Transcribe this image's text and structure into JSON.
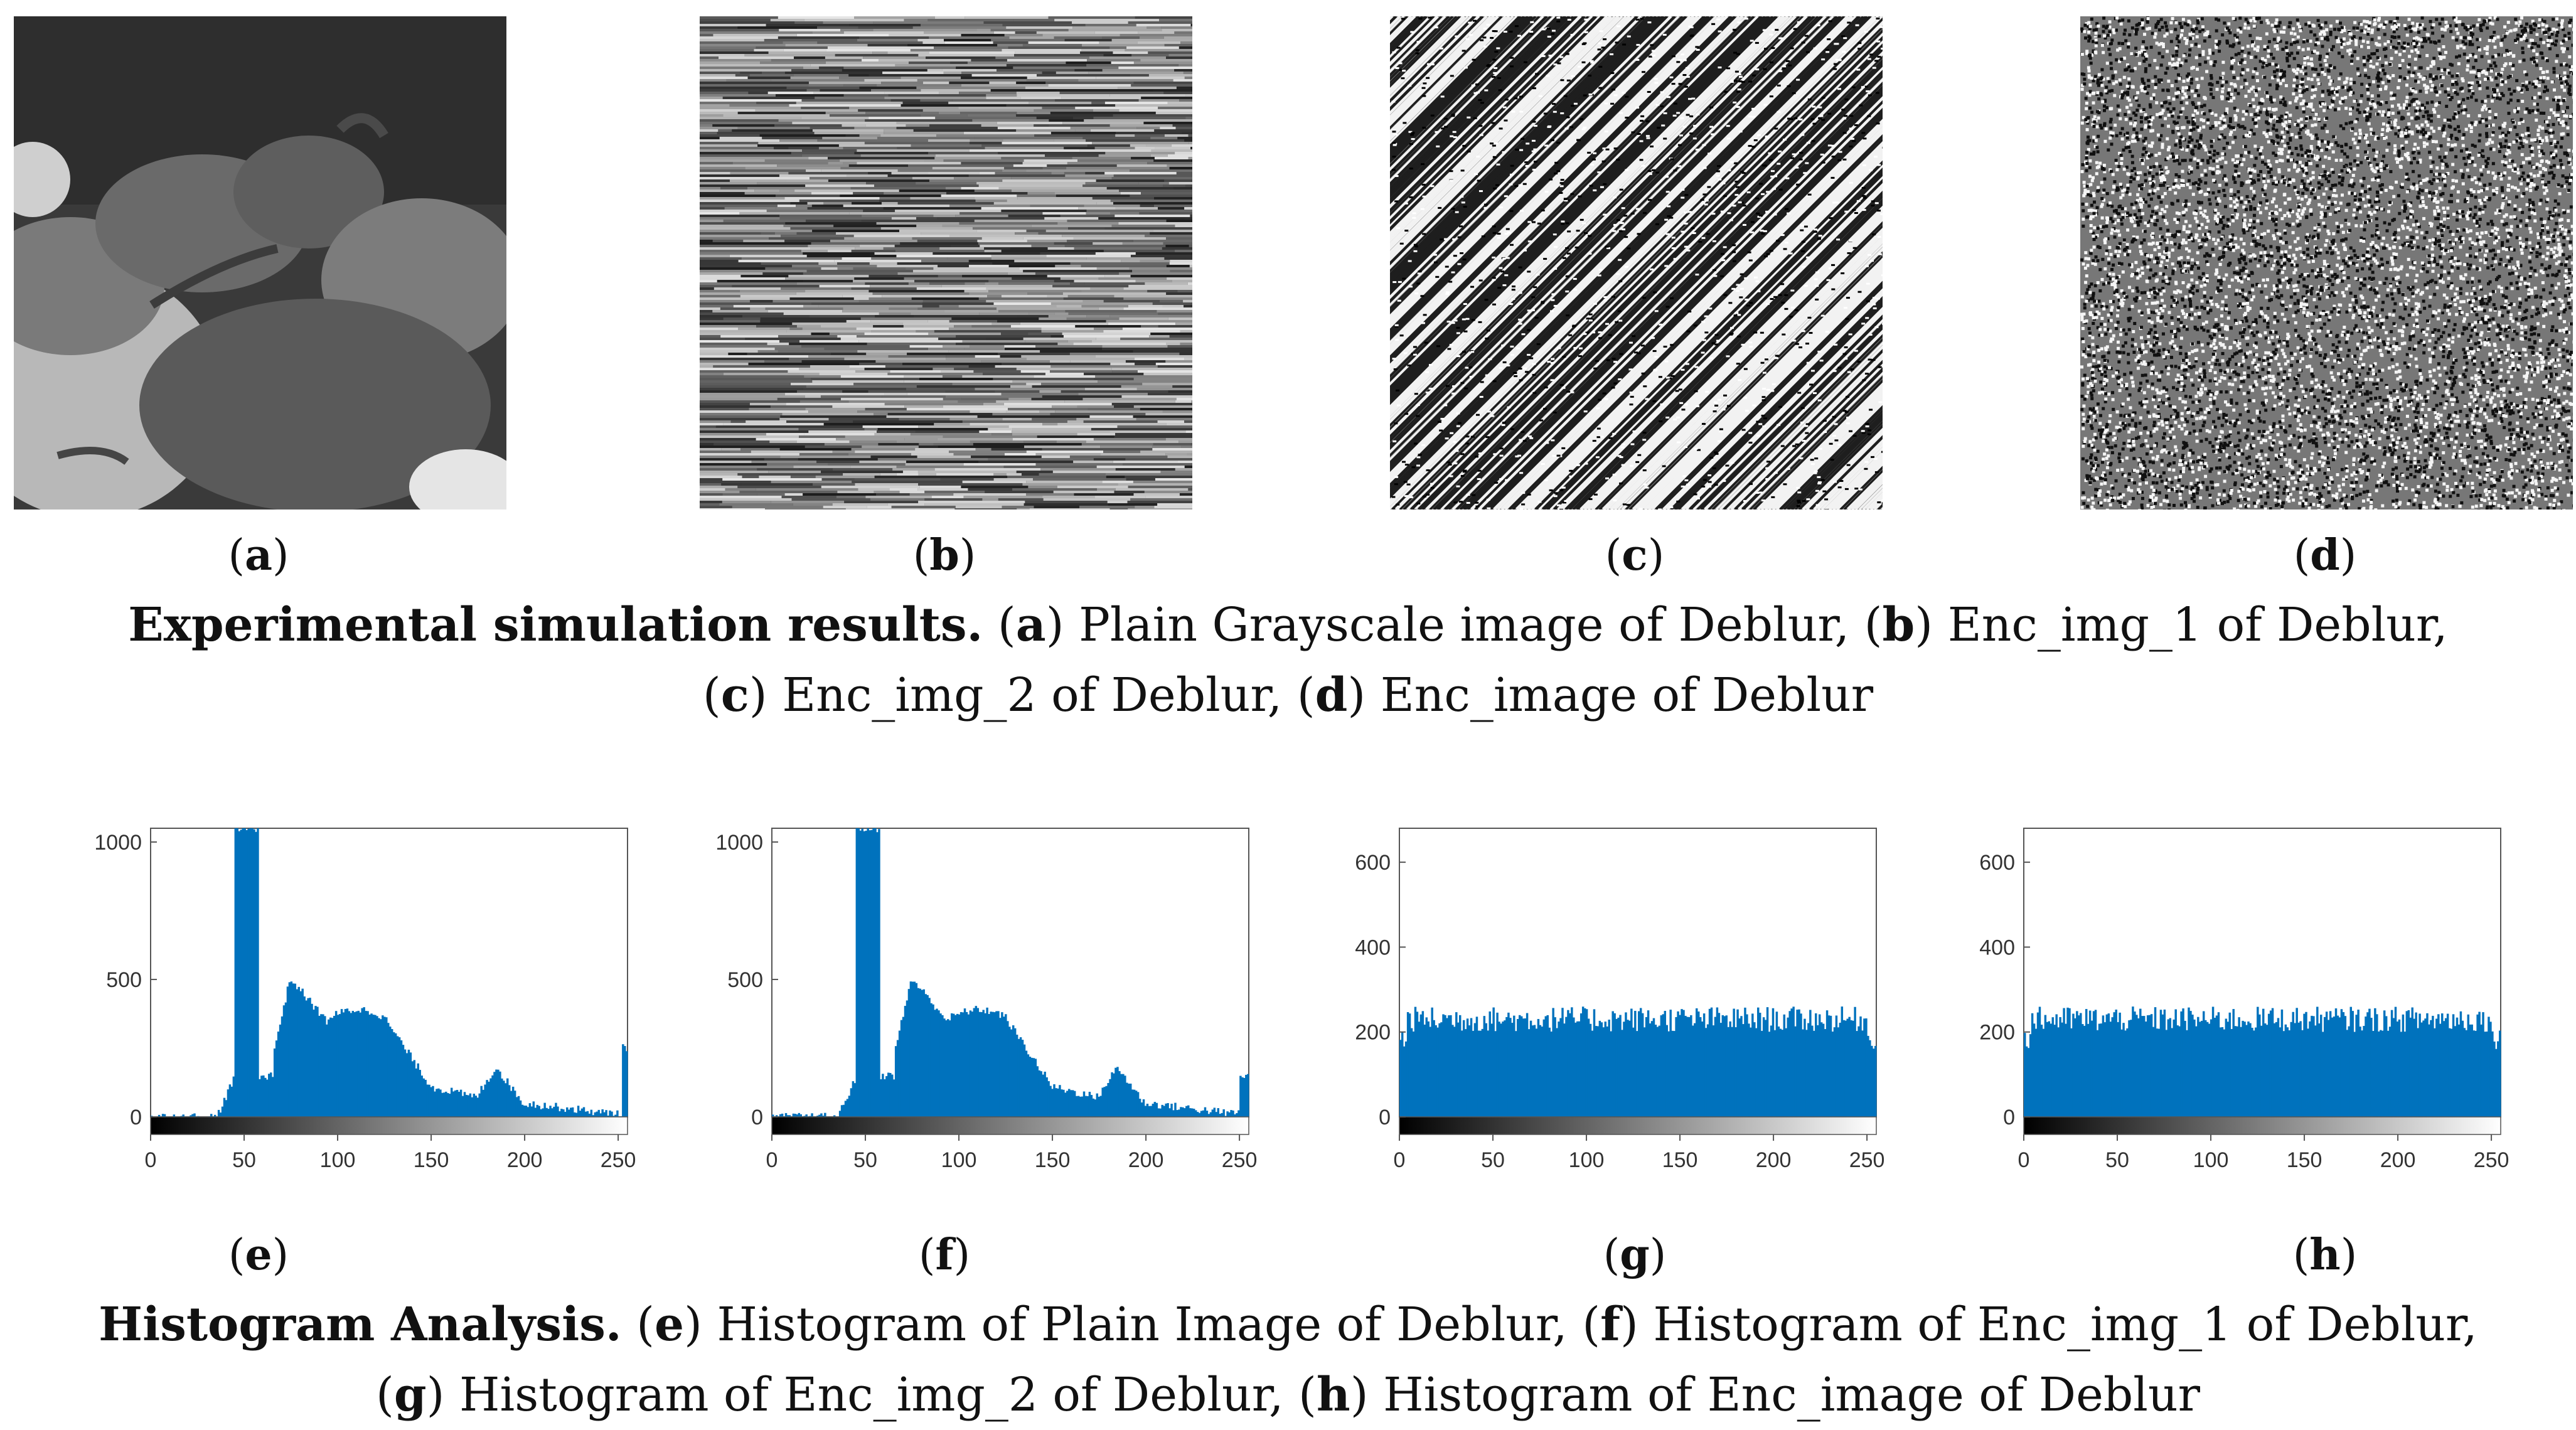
{
  "panels_top": [
    {
      "letter": "a",
      "kind": "peppers"
    },
    {
      "letter": "b",
      "kind": "streaks"
    },
    {
      "letter": "c",
      "kind": "diagonal"
    },
    {
      "letter": "d",
      "kind": "noise"
    }
  ],
  "caption_top": {
    "title": "Experimental simulation results.",
    "line1_rest": [
      {
        "l": "a",
        "t": "Plain Grayscale image of Deblur,"
      },
      {
        "l": "b",
        "t": "Enc_img_1 of Deblur,"
      }
    ],
    "line2": [
      {
        "l": "c",
        "t": "Enc_img_2 of Deblur,"
      },
      {
        "l": "d",
        "t": " Enc_image of Deblur"
      }
    ]
  },
  "chart_data": [
    {
      "letter": "e",
      "type": "bar",
      "ylim": [
        0,
        1050
      ],
      "yticks": [
        0,
        500,
        1000
      ],
      "xticks": [
        0,
        50,
        100,
        150,
        200,
        250
      ],
      "xlim": [
        0,
        255
      ],
      "color": "#0072BD",
      "shape": "plain"
    },
    {
      "letter": "f",
      "type": "bar",
      "ylim": [
        0,
        1050
      ],
      "yticks": [
        0,
        500,
        1000
      ],
      "xticks": [
        0,
        50,
        100,
        150,
        200,
        250
      ],
      "xlim": [
        0,
        255
      ],
      "color": "#0072BD",
      "shape": "plain"
    },
    {
      "letter": "g",
      "type": "bar",
      "ylim": [
        0,
        680
      ],
      "yticks": [
        0,
        200,
        400,
        600
      ],
      "xticks": [
        0,
        50,
        100,
        150,
        200,
        250
      ],
      "xlim": [
        0,
        255
      ],
      "color": "#0072BD",
      "shape": "uniform",
      "approx_level": 230
    },
    {
      "letter": "h",
      "type": "bar",
      "ylim": [
        0,
        680
      ],
      "yticks": [
        0,
        200,
        400,
        600
      ],
      "xticks": [
        0,
        50,
        100,
        150,
        200,
        250
      ],
      "xlim": [
        0,
        255
      ],
      "color": "#0072BD",
      "shape": "uniform",
      "approx_level": 230
    }
  ],
  "caption_bottom": {
    "title": "Histogram Analysis.",
    "line1_rest": [
      {
        "l": "e",
        "t": "Histogram of Plain Image of Deblur,"
      },
      {
        "l": "f",
        "t": "Histogram of Enc_img_1 of Deblur,"
      }
    ],
    "line2": [
      {
        "l": "g",
        "t": " Histogram of Enc_img_2 of Deblur,"
      },
      {
        "l": "h",
        "t": " Histogram of Enc_image of Deblur"
      }
    ]
  }
}
